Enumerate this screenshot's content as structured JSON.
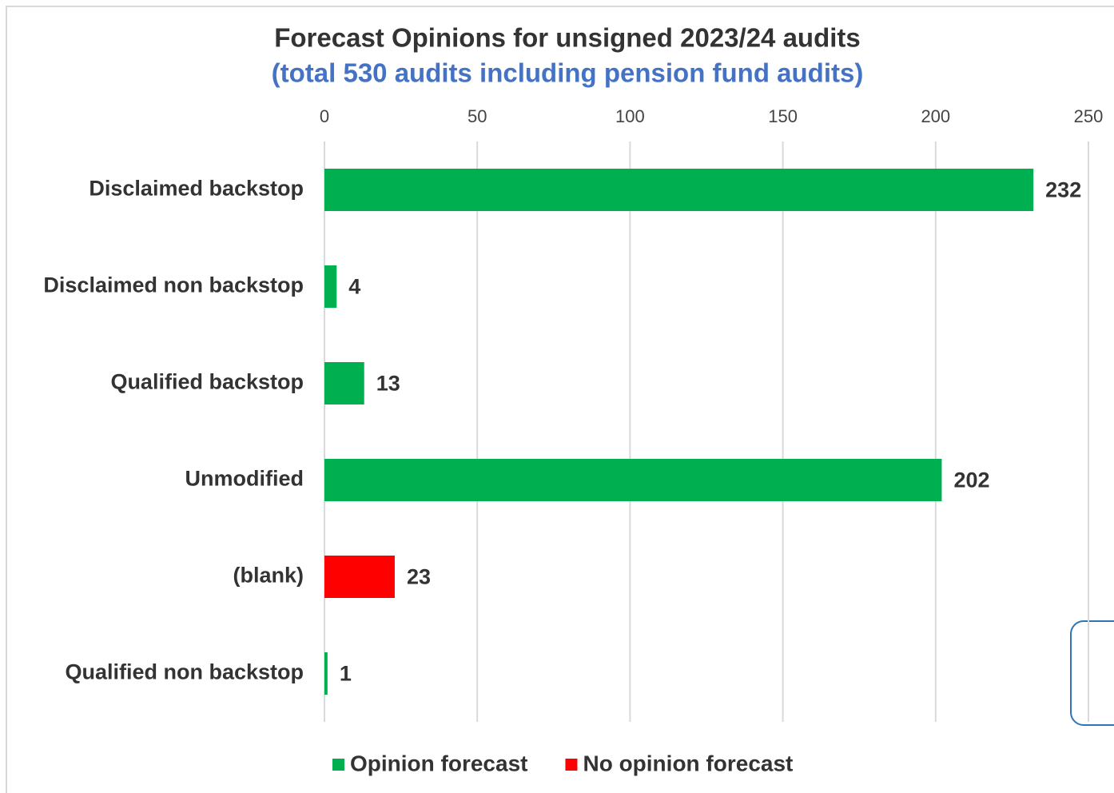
{
  "chart_data": {
    "type": "barh",
    "title": "Forecast Opinions for unsigned 2023/24 audits",
    "subtitle": "(total 530 audits including pension fund audits)",
    "categories": [
      "Disclaimed backstop",
      "Disclaimed non backstop",
      "Qualified backstop",
      "Unmodified",
      "(blank)",
      "Qualified non backstop"
    ],
    "series": [
      {
        "name": "Opinion forecast",
        "color": "#00b050",
        "values": [
          232,
          4,
          13,
          202,
          null,
          1
        ]
      },
      {
        "name": "No opinion forecast",
        "color": "#ff0000",
        "values": [
          null,
          null,
          null,
          null,
          23,
          null
        ]
      }
    ],
    "xlim": [
      0,
      250
    ],
    "xticks": [
      0,
      50,
      100,
      150,
      200,
      250
    ],
    "grid": true,
    "legend": "bottom"
  }
}
